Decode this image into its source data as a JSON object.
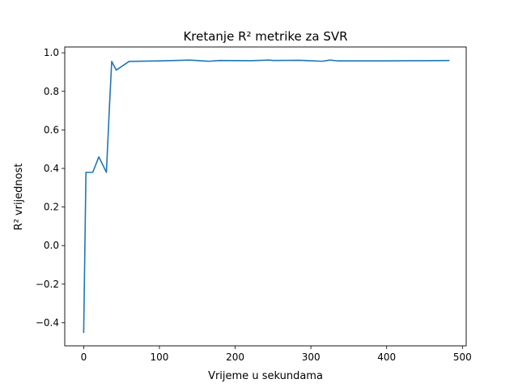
{
  "chart_data": {
    "type": "line",
    "title": "Kretanje R² metrike za SVR",
    "xlabel": "Vrijeme u sekundama",
    "ylabel": "R² vrijednost",
    "xlim": [
      -25,
      505
    ],
    "ylim": [
      -0.52,
      1.03
    ],
    "xticks": [
      0,
      100,
      200,
      300,
      400,
      500
    ],
    "xtick_labels": [
      "0",
      "100",
      "200",
      "300",
      "400",
      "500"
    ],
    "yticks": [
      -0.4,
      -0.2,
      0.0,
      0.2,
      0.4,
      0.6,
      0.8,
      1.0
    ],
    "ytick_labels": [
      "−0.4",
      "−0.2",
      "0.0",
      "0.2",
      "0.4",
      "0.6",
      "0.8",
      "1.0"
    ],
    "grid": false,
    "legend": "none",
    "series": [
      {
        "color": "#1f77b4",
        "x": [
          0,
          3,
          12,
          20,
          30,
          34,
          37,
          43,
          60,
          100,
          140,
          165,
          180,
          220,
          245,
          250,
          285,
          315,
          325,
          335,
          400,
          450,
          482
        ],
        "y": [
          -0.45,
          0.38,
          0.38,
          0.46,
          0.38,
          0.72,
          0.955,
          0.91,
          0.955,
          0.958,
          0.962,
          0.956,
          0.96,
          0.959,
          0.962,
          0.96,
          0.961,
          0.956,
          0.962,
          0.958,
          0.958,
          0.959,
          0.96
        ]
      }
    ]
  }
}
